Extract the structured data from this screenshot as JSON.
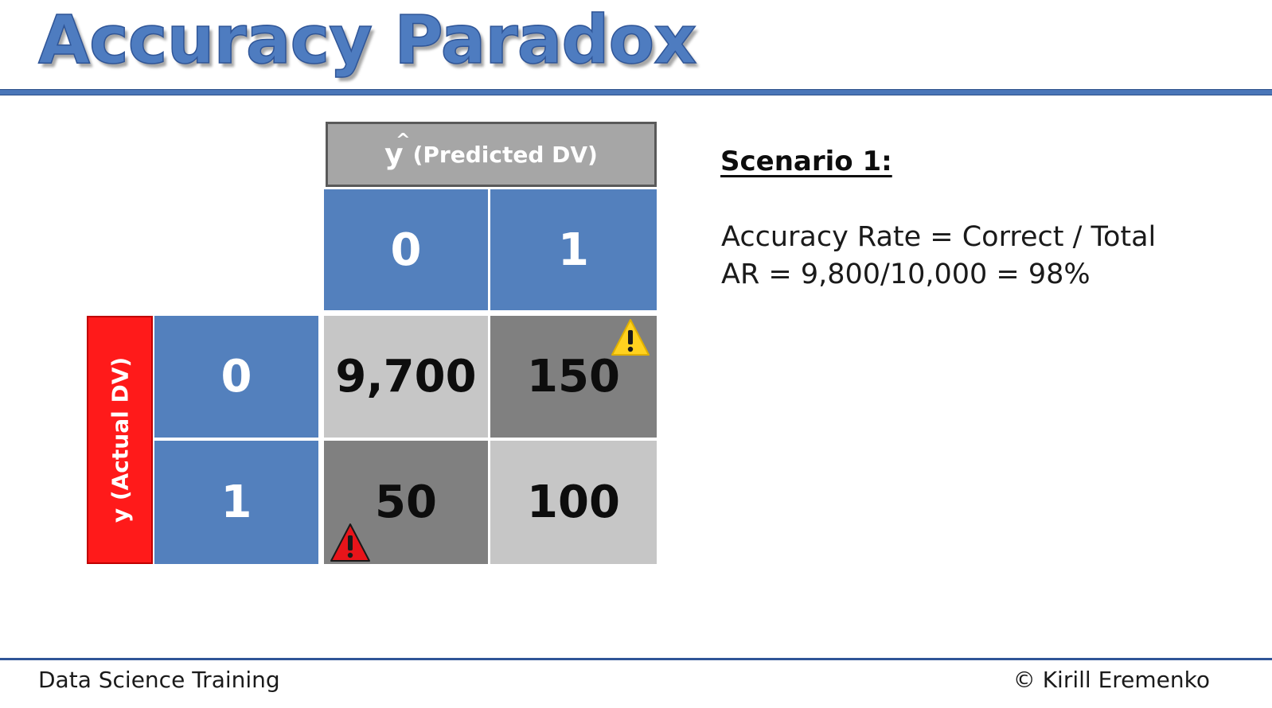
{
  "slide": {
    "title": "Accuracy Paradox"
  },
  "matrix": {
    "predicted_header": {
      "symbol": "y",
      "label": "(Predicted DV)"
    },
    "actual_header": "y (Actual DV)",
    "predicted_classes": [
      "0",
      "1"
    ],
    "actual_classes": [
      "0",
      "1"
    ],
    "cells": {
      "r0c0": "9,700",
      "r0c1": "150",
      "r1c0": "50",
      "r1c1": "100"
    },
    "warning_icons": {
      "r0c1": "warning-icon",
      "r1c0": "alert-icon"
    },
    "colors": {
      "header_blue": "#5380bd",
      "correct_cell": "#c6c6c6",
      "error_cell": "#808080",
      "actual_header": "#ff1a1a",
      "warning_yellow": "#ffd21f",
      "warning_red": "#e8141a"
    }
  },
  "scenario": {
    "heading": "Scenario 1:",
    "formula_line1": "Accuracy Rate = Correct / Total",
    "formula_line2": "AR = 9,800/10,000 = 98%"
  },
  "footer": {
    "left": "Data Science Training",
    "right": "© Kirill Eremenko"
  }
}
